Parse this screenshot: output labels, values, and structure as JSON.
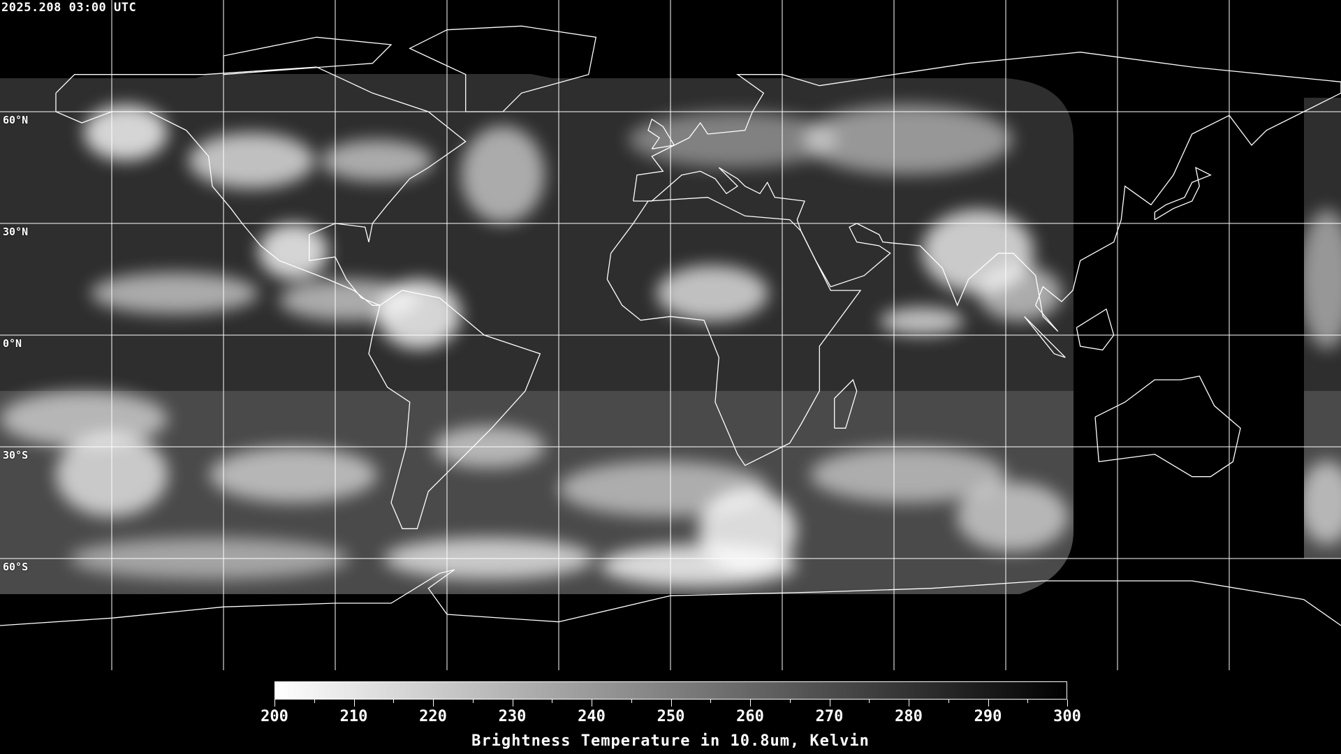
{
  "timestamp": "2025.208 03:00 UTC",
  "map": {
    "projection": "equirectangular",
    "lon_range": [
      -180,
      180
    ],
    "lat_range": [
      90,
      -90
    ],
    "grid_spacing_deg": 30,
    "latitude_labels": [
      "60°N",
      "30°N",
      "0°N",
      "30°S",
      "60°S"
    ],
    "gridline_color": "#ffffff",
    "coastline_color": "#ffffff",
    "no_data_color": "#000000"
  },
  "colorbar": {
    "min": 200,
    "max": 300,
    "colormap": "grayscale, white (cold) to black (warm)",
    "tick_labels": [
      "200",
      "210",
      "220",
      "230",
      "240",
      "250",
      "260",
      "270",
      "280",
      "290",
      "300"
    ],
    "title": "Brightness Temperature in 10.8um, Kelvin"
  }
}
